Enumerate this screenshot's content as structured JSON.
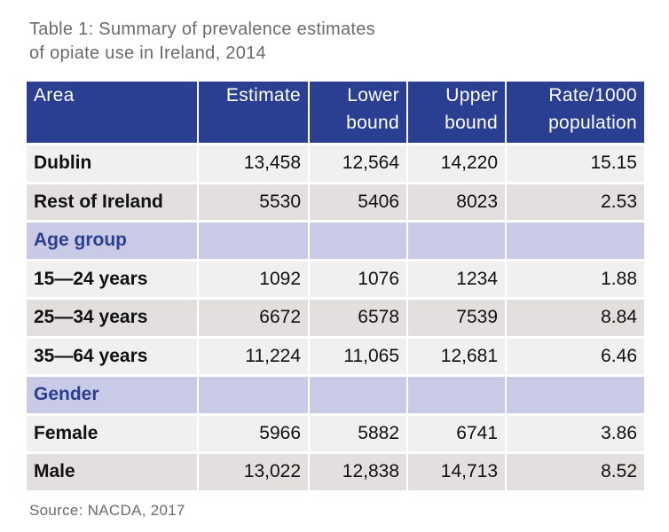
{
  "title": {
    "line1": "Table 1: Summary of prevalence estimates",
    "line2": "of opiate use in Ireland, 2014"
  },
  "table": {
    "headers": [
      {
        "line1": "Area",
        "line2": ""
      },
      {
        "line1": "Estimate",
        "line2": ""
      },
      {
        "line1": "Lower",
        "line2": "bound"
      },
      {
        "line1": "Upper",
        "line2": "bound"
      },
      {
        "line1": "Rate/1000",
        "line2": "population"
      }
    ],
    "rows": [
      {
        "label": "Dublin",
        "estimate": "13,458",
        "lower": "12,564",
        "upper": "14,220",
        "rate": "15.15"
      },
      {
        "label": "Rest of Ireland",
        "estimate": "5530",
        "lower": "5406",
        "upper": "8023",
        "rate": "2.53"
      },
      {
        "label": "Age group"
      },
      {
        "label": "15—24 years",
        "estimate": "1092",
        "lower": "1076",
        "upper": "1234",
        "rate": "1.88"
      },
      {
        "label": "25—34 years",
        "estimate": "6672",
        "lower": "6578",
        "upper": "7539",
        "rate": "8.84"
      },
      {
        "label": "35—64 years",
        "estimate": "11,224",
        "lower": "11,065",
        "upper": "12,681",
        "rate": "6.46"
      },
      {
        "label": "Gender"
      },
      {
        "label": "Female",
        "estimate": "5966",
        "lower": "5882",
        "upper": "6741",
        "rate": "3.86"
      },
      {
        "label": "Male",
        "estimate": "13,022",
        "lower": "12,838",
        "upper": "14,713",
        "rate": "8.52"
      }
    ]
  },
  "source": "Source: NACDA, 2017",
  "colors": {
    "header_bg": "#2a3f91",
    "section_bg": "#c9cae5",
    "row_light": "#f1f0f0",
    "row_dark": "#e2dfde"
  }
}
